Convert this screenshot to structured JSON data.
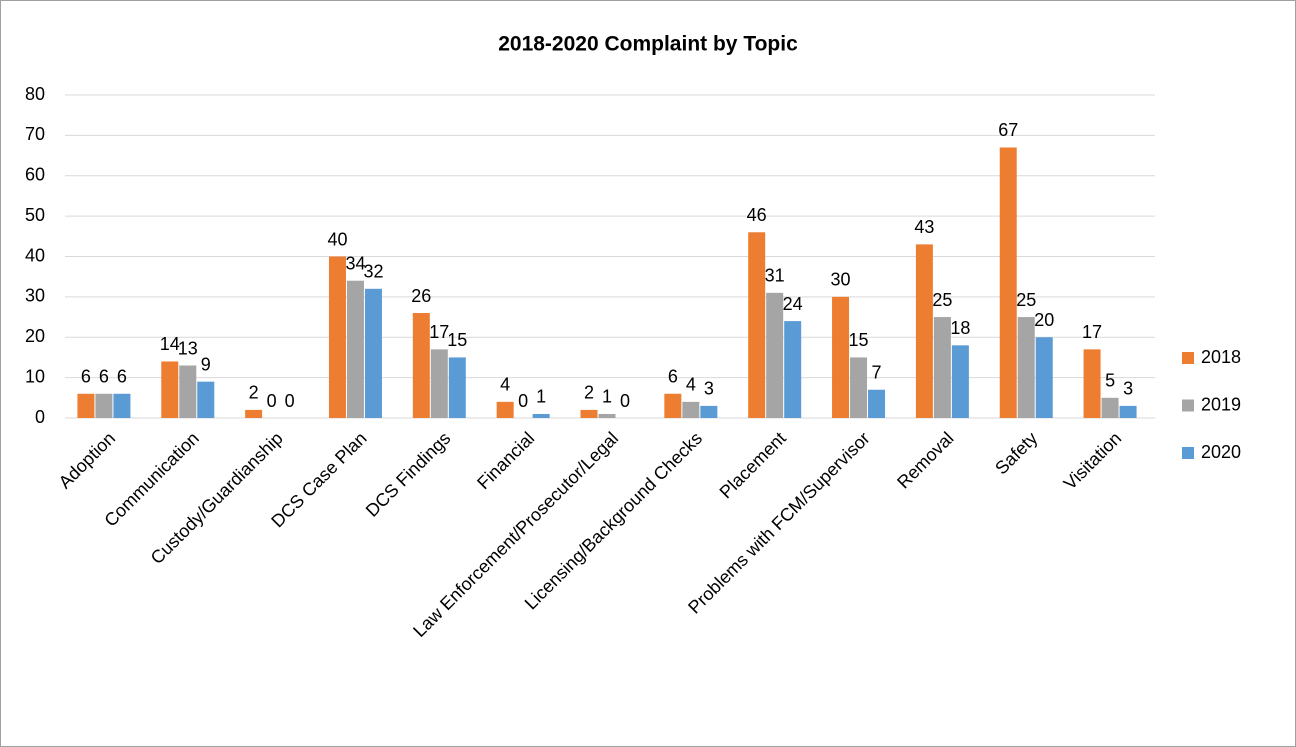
{
  "chart_data": {
    "type": "bar",
    "title": "2018-2020 Complaint by Topic",
    "categories": [
      "Adoption",
      "Communication",
      "Custody/Guardianship",
      "DCS Case Plan",
      "DCS Findings",
      "Financial",
      "Law Enforcement/Prosecutor/Legal",
      "Licensing/Background Checks",
      "Placement",
      "Problems with FCM/Supervisor",
      "Removal",
      "Safety",
      "Visitation"
    ],
    "series": [
      {
        "name": "2018",
        "color": "#ED7D31",
        "values": [
          6,
          14,
          2,
          40,
          26,
          4,
          2,
          6,
          46,
          30,
          43,
          67,
          17
        ]
      },
      {
        "name": "2019",
        "color": "#A5A5A5",
        "values": [
          6,
          13,
          0,
          34,
          17,
          0,
          1,
          4,
          31,
          15,
          25,
          25,
          5
        ]
      },
      {
        "name": "2020",
        "color": "#5B9BD5",
        "values": [
          6,
          9,
          0,
          32,
          15,
          1,
          0,
          3,
          24,
          7,
          18,
          20,
          3
        ]
      }
    ],
    "ylim": [
      0,
      80
    ],
    "yticks": [
      0,
      10,
      20,
      30,
      40,
      50,
      60,
      70,
      80
    ],
    "grid": true,
    "legend": "right"
  }
}
